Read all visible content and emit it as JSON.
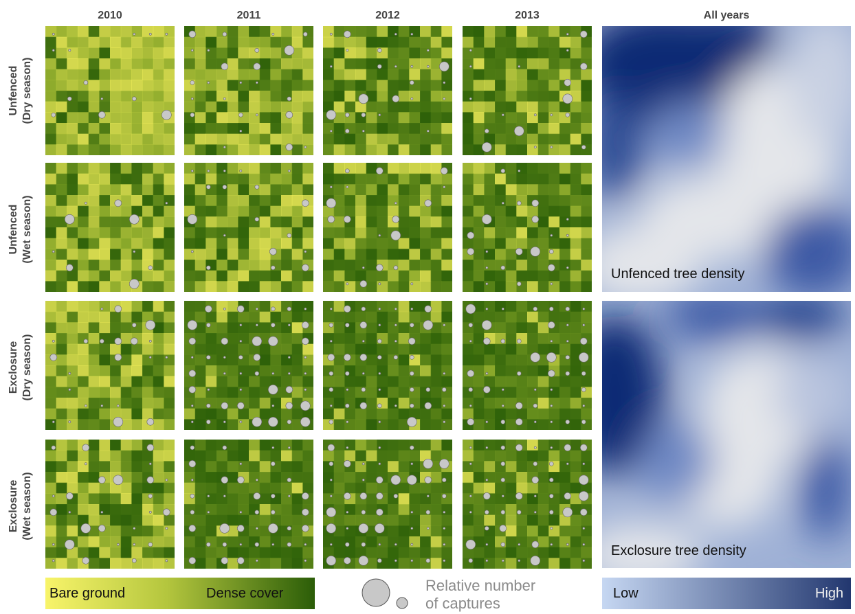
{
  "chart_data": {
    "type": "heatmap",
    "column_titles": [
      "2010",
      "2011",
      "2012",
      "2013",
      "All years"
    ],
    "row_titles": [
      [
        "Unfenced",
        "(Dry season)"
      ],
      [
        "Unfenced",
        "(Wet season)"
      ],
      [
        "Exclosure",
        "(Dry season)"
      ],
      [
        "Exclosure",
        "(Wet season)"
      ]
    ],
    "tree_density_labels": [
      "Unfenced tree density",
      "Exclosure tree density"
    ],
    "legends": {
      "cover": {
        "low_label": "Bare ground",
        "high_label": "Dense cover",
        "low_color": "#f8f46a",
        "high_color": "#2b5d08"
      },
      "captures": {
        "label_line1": "Relative number",
        "label_line2": "of captures"
      },
      "density": {
        "low_label": "Low",
        "high_label": "High",
        "low_color": "#c6d7f2",
        "high_color": "#22376f"
      }
    },
    "colors": {
      "dense": "#2e6209",
      "mid": "#8fae2b",
      "bare": "#f2ee5a",
      "marker": "#c8c8c8",
      "density_high": "#0e2a75",
      "density_low": "#e4e6ea"
    },
    "grid_points": 8
  }
}
